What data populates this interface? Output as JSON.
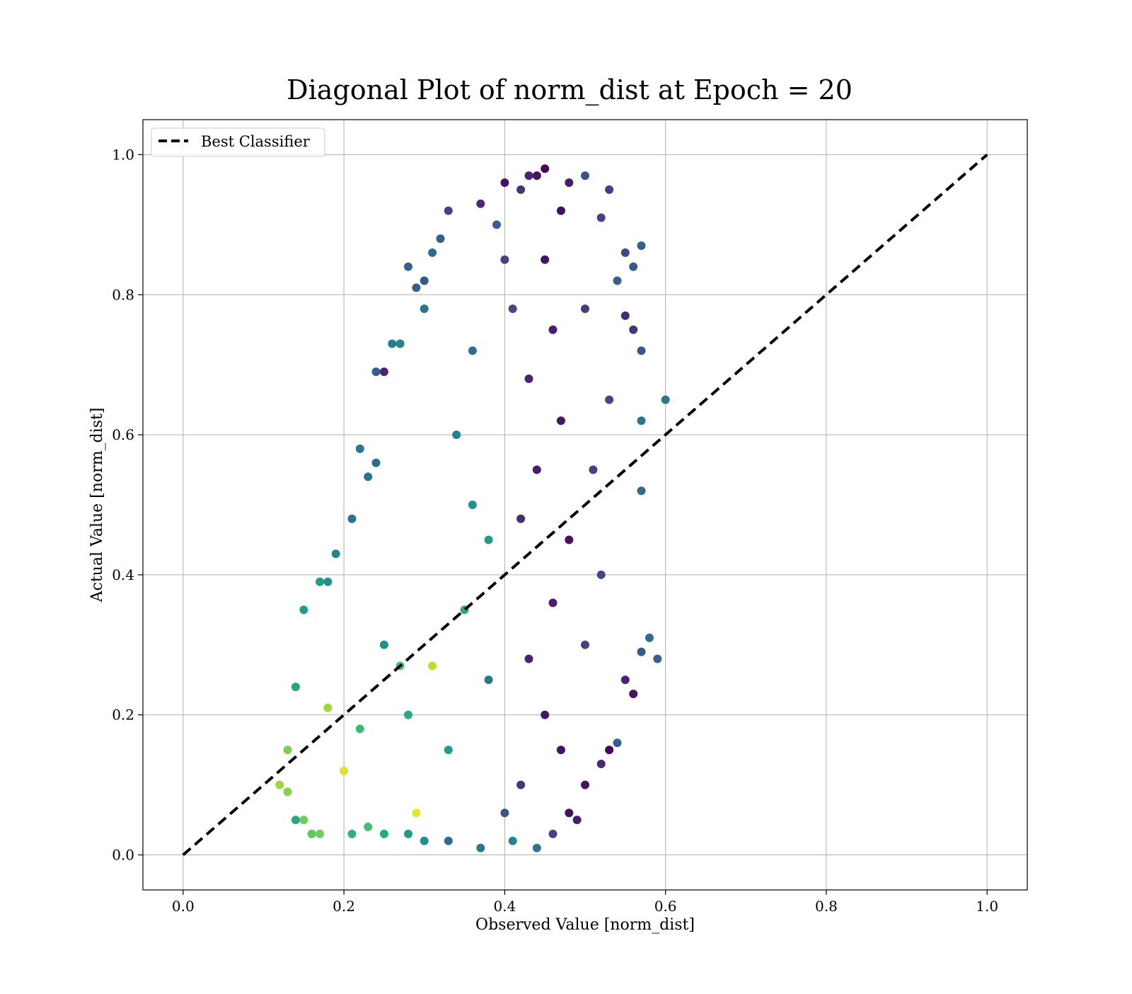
{
  "chart_data": {
    "type": "scatter",
    "title": "Diagonal Plot of norm_dist at Epoch = 20",
    "xlabel": "Observed Value [norm_dist]",
    "ylabel": "Actual Value [norm_dist]",
    "xlim": [
      -0.05,
      1.05
    ],
    "ylim": [
      -0.05,
      1.05
    ],
    "xticks": [
      "0.0",
      "0.2",
      "0.4",
      "0.6",
      "0.8",
      "1.0"
    ],
    "yticks": [
      "0.0",
      "0.2",
      "0.4",
      "0.6",
      "0.8",
      "1.0"
    ],
    "grid": true,
    "legend_position": "top-left",
    "reference_line": {
      "name": "Best Classifier",
      "style": "dashed",
      "color": "#000000",
      "x": [
        0.0,
        1.0
      ],
      "y": [
        0.0,
        1.0
      ]
    },
    "colormap": "viridis",
    "points": [
      [
        0.45,
        0.98,
        0.02
      ],
      [
        0.44,
        0.97,
        0.05
      ],
      [
        0.43,
        0.97,
        0.1
      ],
      [
        0.42,
        0.95,
        0.15
      ],
      [
        0.48,
        0.96,
        0.08
      ],
      [
        0.4,
        0.96,
        0.05
      ],
      [
        0.37,
        0.93,
        0.12
      ],
      [
        0.5,
        0.97,
        0.25
      ],
      [
        0.53,
        0.95,
        0.18
      ],
      [
        0.39,
        0.9,
        0.3
      ],
      [
        0.47,
        0.92,
        0.04
      ],
      [
        0.52,
        0.91,
        0.2
      ],
      [
        0.55,
        0.86,
        0.22
      ],
      [
        0.57,
        0.87,
        0.3
      ],
      [
        0.56,
        0.84,
        0.28
      ],
      [
        0.54,
        0.82,
        0.3
      ],
      [
        0.33,
        0.92,
        0.2
      ],
      [
        0.32,
        0.88,
        0.3
      ],
      [
        0.31,
        0.86,
        0.34
      ],
      [
        0.28,
        0.84,
        0.32
      ],
      [
        0.3,
        0.82,
        0.28
      ],
      [
        0.29,
        0.81,
        0.3
      ],
      [
        0.3,
        0.78,
        0.38
      ],
      [
        0.26,
        0.73,
        0.42
      ],
      [
        0.27,
        0.73,
        0.45
      ],
      [
        0.24,
        0.69,
        0.3
      ],
      [
        0.25,
        0.69,
        0.1
      ],
      [
        0.55,
        0.77,
        0.12
      ],
      [
        0.56,
        0.75,
        0.15
      ],
      [
        0.57,
        0.72,
        0.25
      ],
      [
        0.6,
        0.65,
        0.4
      ],
      [
        0.57,
        0.62,
        0.4
      ],
      [
        0.57,
        0.52,
        0.35
      ],
      [
        0.58,
        0.31,
        0.35
      ],
      [
        0.59,
        0.28,
        0.3
      ],
      [
        0.57,
        0.29,
        0.28
      ],
      [
        0.56,
        0.23,
        0.05
      ],
      [
        0.55,
        0.25,
        0.1
      ],
      [
        0.54,
        0.16,
        0.3
      ],
      [
        0.53,
        0.15,
        0.02
      ],
      [
        0.22,
        0.58,
        0.4
      ],
      [
        0.24,
        0.56,
        0.36
      ],
      [
        0.23,
        0.54,
        0.4
      ],
      [
        0.21,
        0.48,
        0.38
      ],
      [
        0.19,
        0.43,
        0.45
      ],
      [
        0.18,
        0.39,
        0.5
      ],
      [
        0.17,
        0.39,
        0.55
      ],
      [
        0.15,
        0.35,
        0.55
      ],
      [
        0.14,
        0.24,
        0.58
      ],
      [
        0.13,
        0.15,
        0.8
      ],
      [
        0.12,
        0.1,
        0.85
      ],
      [
        0.13,
        0.09,
        0.82
      ],
      [
        0.14,
        0.05,
        0.6
      ],
      [
        0.15,
        0.05,
        0.78
      ],
      [
        0.16,
        0.03,
        0.75
      ],
      [
        0.17,
        0.03,
        0.78
      ],
      [
        0.21,
        0.03,
        0.65
      ],
      [
        0.23,
        0.04,
        0.7
      ],
      [
        0.25,
        0.03,
        0.6
      ],
      [
        0.28,
        0.03,
        0.55
      ],
      [
        0.3,
        0.02,
        0.5
      ],
      [
        0.33,
        0.02,
        0.35
      ],
      [
        0.37,
        0.01,
        0.4
      ],
      [
        0.41,
        0.02,
        0.45
      ],
      [
        0.44,
        0.01,
        0.4
      ],
      [
        0.46,
        0.03,
        0.2
      ],
      [
        0.48,
        0.06,
        0.05
      ],
      [
        0.5,
        0.1,
        0.05
      ],
      [
        0.52,
        0.13,
        0.12
      ],
      [
        0.49,
        0.05,
        0.08
      ],
      [
        0.2,
        0.12,
        0.95
      ],
      [
        0.29,
        0.06,
        0.97
      ],
      [
        0.31,
        0.27,
        0.9
      ],
      [
        0.27,
        0.27,
        0.7
      ],
      [
        0.18,
        0.21,
        0.85
      ],
      [
        0.35,
        0.35,
        0.6
      ],
      [
        0.38,
        0.45,
        0.55
      ],
      [
        0.36,
        0.5,
        0.5
      ],
      [
        0.34,
        0.6,
        0.45
      ],
      [
        0.36,
        0.72,
        0.35
      ],
      [
        0.4,
        0.85,
        0.2
      ],
      [
        0.41,
        0.78,
        0.22
      ],
      [
        0.45,
        0.85,
        0.05
      ],
      [
        0.46,
        0.75,
        0.08
      ],
      [
        0.43,
        0.68,
        0.1
      ],
      [
        0.47,
        0.62,
        0.06
      ],
      [
        0.44,
        0.55,
        0.08
      ],
      [
        0.42,
        0.48,
        0.12
      ],
      [
        0.48,
        0.45,
        0.05
      ],
      [
        0.46,
        0.36,
        0.08
      ],
      [
        0.43,
        0.28,
        0.1
      ],
      [
        0.45,
        0.2,
        0.06
      ],
      [
        0.47,
        0.15,
        0.05
      ],
      [
        0.42,
        0.1,
        0.15
      ],
      [
        0.4,
        0.06,
        0.25
      ],
      [
        0.5,
        0.3,
        0.2
      ],
      [
        0.52,
        0.4,
        0.22
      ],
      [
        0.51,
        0.55,
        0.2
      ],
      [
        0.53,
        0.65,
        0.22
      ],
      [
        0.5,
        0.78,
        0.18
      ],
      [
        0.38,
        0.25,
        0.4
      ],
      [
        0.33,
        0.15,
        0.55
      ],
      [
        0.28,
        0.2,
        0.6
      ],
      [
        0.25,
        0.3,
        0.5
      ],
      [
        0.22,
        0.18,
        0.68
      ]
    ]
  }
}
